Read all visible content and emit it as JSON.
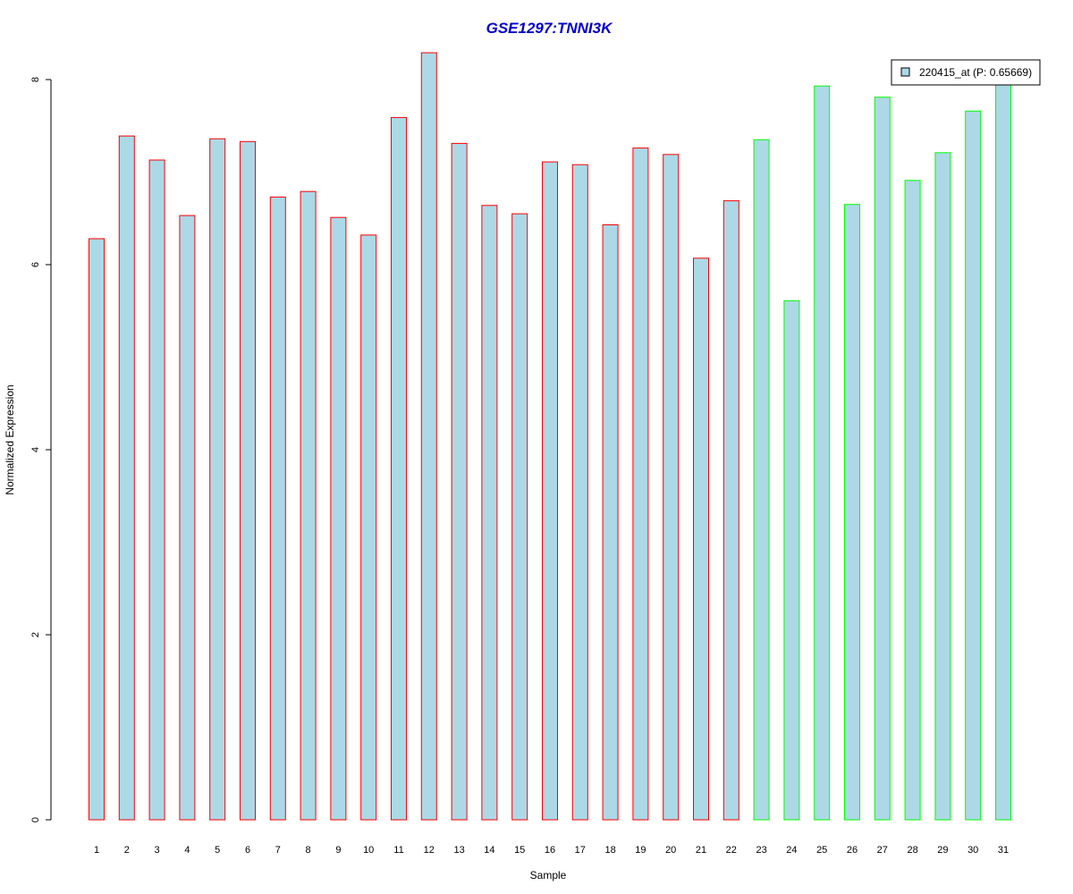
{
  "chart_data": {
    "type": "bar",
    "title": "GSE1297:TNNI3K",
    "xlabel": "Sample",
    "ylabel": "Normalized Expression",
    "categories": [
      "1",
      "2",
      "3",
      "4",
      "5",
      "6",
      "7",
      "8",
      "9",
      "10",
      "11",
      "12",
      "13",
      "14",
      "15",
      "16",
      "17",
      "18",
      "19",
      "20",
      "21",
      "22",
      "23",
      "24",
      "25",
      "26",
      "27",
      "28",
      "29",
      "30",
      "31"
    ],
    "values": [
      6.28,
      7.39,
      7.13,
      6.53,
      7.36,
      7.33,
      6.73,
      6.79,
      6.51,
      6.32,
      7.59,
      8.29,
      7.31,
      6.64,
      6.55,
      7.11,
      7.08,
      6.43,
      7.26,
      7.19,
      6.07,
      6.69,
      7.35,
      5.61,
      7.93,
      6.65,
      7.81,
      6.91,
      7.21,
      7.66,
      8.0
    ],
    "groups": [
      "red",
      "red",
      "red",
      "red",
      "red",
      "red",
      "red",
      "red",
      "red",
      "red",
      "red",
      "red",
      "red",
      "red",
      "red",
      "red",
      "red",
      "red",
      "red",
      "red",
      "red",
      "red",
      "green",
      "green",
      "green",
      "green",
      "green",
      "green",
      "green",
      "green",
      "green"
    ],
    "yticks": [
      0,
      2,
      4,
      6,
      8
    ],
    "ylim": [
      0,
      8.3
    ],
    "grid": false,
    "legend": {
      "label": "220415_at (P: 0.65669)",
      "placement": "top-right"
    },
    "colors": {
      "fill": "#ADD8E6",
      "red": "#FF0000",
      "green": "#00FF00",
      "title": "#0000CC"
    }
  }
}
